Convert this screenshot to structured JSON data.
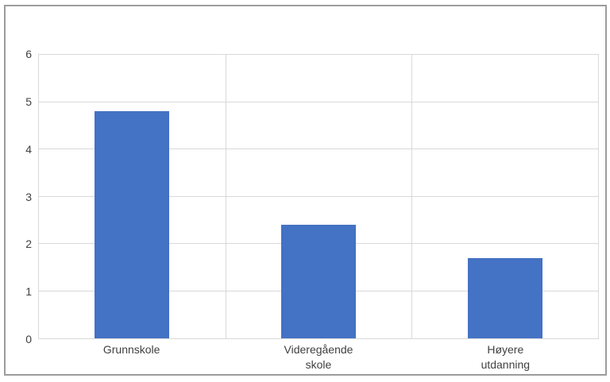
{
  "chart_data": {
    "type": "bar",
    "categories": [
      "Grunnskole",
      "Videregående skole",
      "Høyere utdanning"
    ],
    "category_label_lines": [
      [
        "Grunnskole"
      ],
      [
        "Videregående",
        "skole"
      ],
      [
        "Høyere",
        "utdanning"
      ]
    ],
    "values": [
      4.8,
      2.4,
      1.7
    ],
    "title": "",
    "xlabel": "",
    "ylabel": "",
    "ylim": [
      0,
      6
    ],
    "yticks": [
      0,
      1,
      2,
      3,
      4,
      5,
      6
    ],
    "grid": true,
    "legend": "none",
    "bar_width_fraction_of_column": 0.4,
    "colors": {
      "bar": "#4472C4",
      "gridline": "#D9D9D9",
      "tick_label": "#404040",
      "outer_border": "#9C9C9C",
      "background": "#FFFFFF"
    }
  }
}
